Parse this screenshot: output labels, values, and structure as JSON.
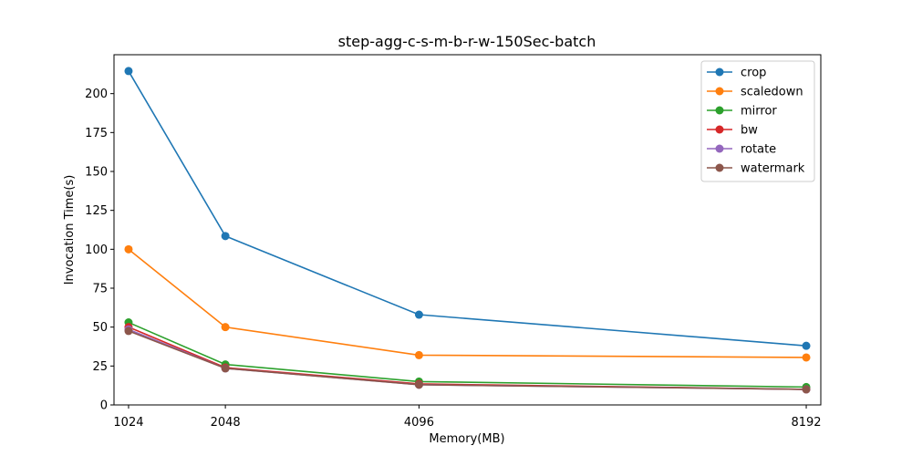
{
  "chart_data": {
    "type": "line",
    "title": "step-agg-c-s-m-b-r-w-150Sec-batch",
    "xlabel": "Memory(MB)",
    "ylabel": "Invocation Time(s)",
    "x": [
      1024,
      2048,
      4096,
      8192
    ],
    "x_tick_labels": [
      "1024",
      "2048",
      "4096",
      "8192"
    ],
    "xlim": [
      870,
      8346
    ],
    "ylim": [
      0,
      225
    ],
    "y_ticks": [
      0,
      25,
      50,
      75,
      100,
      125,
      150,
      175,
      200
    ],
    "grid": false,
    "legend_position": "top-right",
    "series": [
      {
        "name": "crop",
        "color": "#1f77b4",
        "values": [
          214.5,
          108.5,
          58,
          38
        ]
      },
      {
        "name": "scaledown",
        "color": "#ff7f0e",
        "values": [
          100,
          50,
          32,
          30.5
        ]
      },
      {
        "name": "mirror",
        "color": "#2ca02c",
        "values": [
          53,
          26,
          15,
          11.5
        ]
      },
      {
        "name": "bw",
        "color": "#d62728",
        "values": [
          50,
          24,
          13.5,
          10
        ]
      },
      {
        "name": "rotate",
        "color": "#9467bd",
        "values": [
          48.5,
          23.5,
          13,
          10
        ]
      },
      {
        "name": "watermark",
        "color": "#8c564b",
        "values": [
          47.5,
          23.5,
          13,
          10
        ]
      }
    ]
  }
}
